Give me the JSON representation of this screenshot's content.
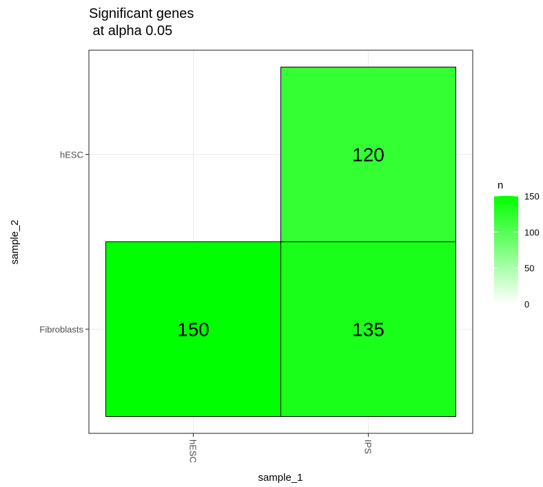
{
  "chart_data": {
    "type": "heatmap",
    "title": "Significant genes\n at alpha 0.05",
    "xlabel": "sample_1",
    "ylabel": "sample_2",
    "x_categories": [
      "hESC",
      "IPS"
    ],
    "y_categories": [
      "hESC",
      "Fibroblasts"
    ],
    "cells": [
      {
        "x": "hESC",
        "y": "Fibroblasts",
        "value": 150,
        "label": "150"
      },
      {
        "x": "IPS",
        "y": "Fibroblasts",
        "value": 135,
        "label": "135"
      },
      {
        "x": "IPS",
        "y": "hESC",
        "value": 120,
        "label": "120"
      }
    ],
    "color_scale": {
      "low": "#ffffff",
      "high": "#00ff00",
      "limits": [
        0,
        150
      ]
    },
    "legend": {
      "title": "n",
      "ticks": [
        0,
        50,
        100,
        150
      ],
      "tick_labels": [
        "0",
        "50",
        "100",
        "150"
      ],
      "position": "right"
    },
    "grid": true
  }
}
